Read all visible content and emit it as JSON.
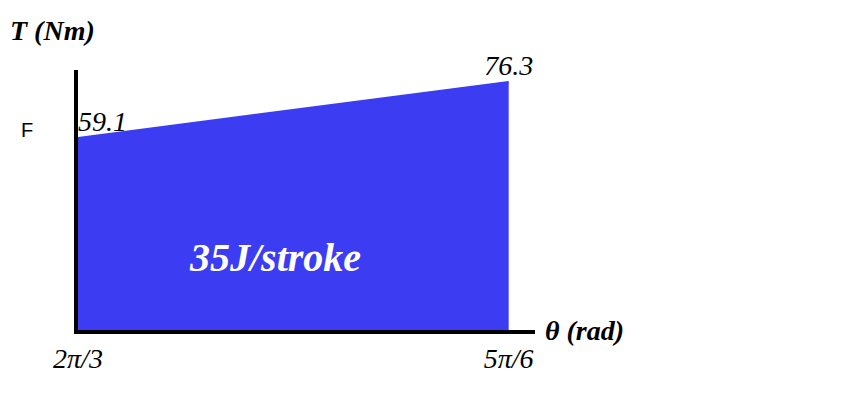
{
  "chart_data": {
    "type": "area",
    "xlabel": "θ (rad)",
    "ylabel": "T (Nm)",
    "x": [
      2.0944,
      2.618
    ],
    "values": [
      59.1,
      76.3
    ],
    "color": "#3c3cf2",
    "xlim": [
      2.0944,
      2.65
    ],
    "xticks": [
      {
        "value": 2.0944,
        "label": "2π/3"
      },
      {
        "value": 2.618,
        "label": "5π/6"
      }
    ],
    "ylim": [
      0,
      80
    ],
    "tick_labels": "x",
    "data_labels": true,
    "grid": false,
    "annotations": [
      "35J/stroke",
      "F"
    ]
  }
}
